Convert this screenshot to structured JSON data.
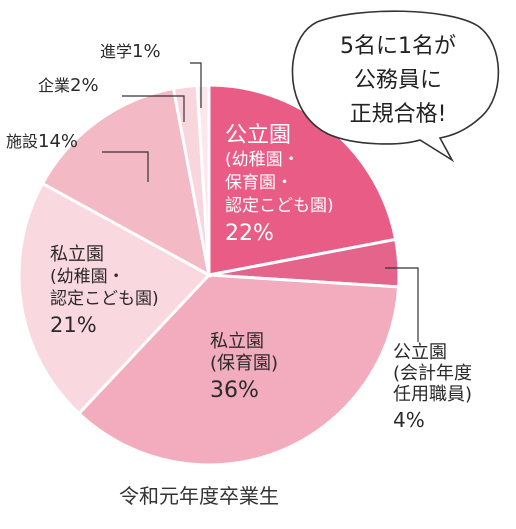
{
  "chart_data": {
    "type": "pie",
    "caption": "令和元年度卒業生",
    "callout": [
      "5名に1名が",
      "公務員に",
      "正規合格!"
    ],
    "slices": [
      {
        "lines": [
          "公立園",
          "(幼稚園・",
          "保育園・",
          "認定こども園)"
        ],
        "value": 22,
        "pct": "22%",
        "color": "#e85c86"
      },
      {
        "lines": [
          "公立園",
          "(会計年度",
          "任用職員)"
        ],
        "value": 4,
        "pct": "4%",
        "color": "#e5648c"
      },
      {
        "lines": [
          "私立園",
          "(保育園)"
        ],
        "value": 36,
        "pct": "36%",
        "color": "#f2acbd"
      },
      {
        "lines": [
          "私立園",
          "(幼稚園・",
          "認定こども園)"
        ],
        "value": 21,
        "pct": "21%",
        "color": "#f9d8df"
      },
      {
        "lines": [
          "施設"
        ],
        "value": 14,
        "pct": "14%",
        "color": "#f3b9c5"
      },
      {
        "lines": [
          "企業"
        ],
        "value": 2,
        "pct": "2%",
        "color": "#f9d6de"
      },
      {
        "lines": [
          "進学"
        ],
        "value": 1,
        "pct": "1%",
        "color": "#fbe7ec"
      }
    ]
  }
}
